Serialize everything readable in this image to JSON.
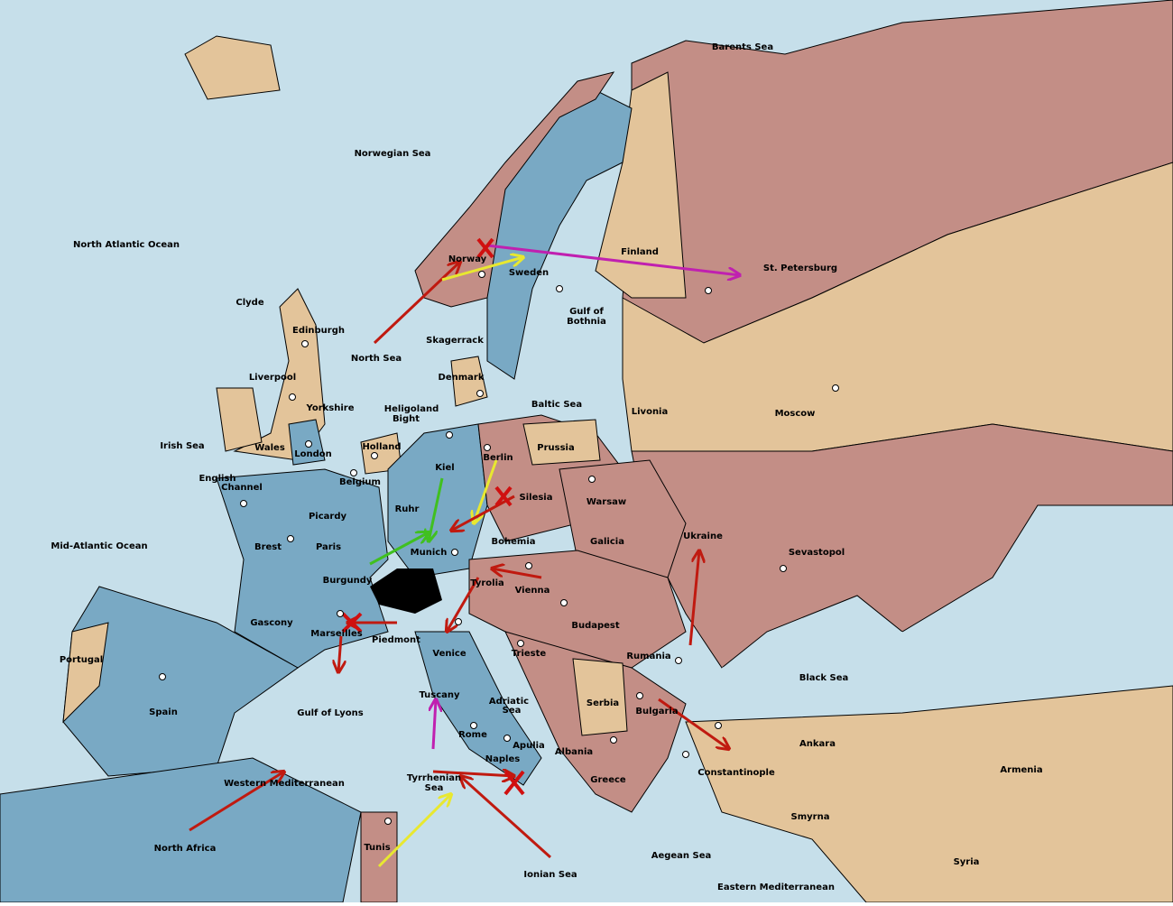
{
  "map": {
    "labels": [
      "Barents Sea",
      "Norwegian Sea",
      "North Atlantic Ocean",
      "Norway",
      "Sweden",
      "Finland",
      "St. Petersburg",
      "Clyde",
      "Edinburgh",
      "Gulf of",
      "Bothnia",
      "Skagerrack",
      "North Sea",
      "Liverpool",
      "Denmark",
      "Baltic Sea",
      "Livonia",
      "Moscow",
      "Yorkshire",
      "Heligoland",
      "Bight",
      "Irish Sea",
      "Holland",
      "Prussia",
      "Wales",
      "London",
      "Berlin",
      "Kiel",
      "English",
      "Channel",
      "Belgium",
      "Silesia",
      "Warsaw",
      "Ruhr",
      "Picardy",
      "Ukraine",
      "Bohemia",
      "Galicia",
      "Brest",
      "Paris",
      "Mid-Atlantic Ocean",
      "Munich",
      "Sevastopol",
      "Burgundy",
      "Tyrolia",
      "Vienna",
      "Gascony",
      "Budapest",
      "Marseilles",
      "Piedmont",
      "Venice",
      "Trieste",
      "Rumania",
      "Portugal",
      "Black Sea",
      "Tuscany",
      "Serbia",
      "Adriatic",
      "Sea",
      "Spain",
      "Bulgaria",
      "Gulf of Lyons",
      "Rome",
      "Apulia",
      "Ankara",
      "Albania",
      "Naples",
      "Constantinople",
      "Armenia",
      "Greece",
      "Tyrrhenian",
      "Sea",
      "Western Mediterranean",
      "Smyrna",
      "North Africa",
      "Tunis",
      "Aegean Sea",
      "Ionian Sea",
      "Syria",
      "Eastern Mediterranean"
    ]
  }
}
